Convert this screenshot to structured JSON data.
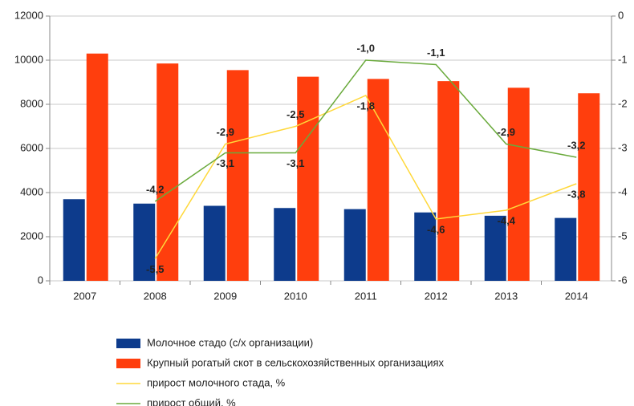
{
  "chart_data": {
    "type": "bar_line",
    "categories": [
      "2007",
      "2008",
      "2009",
      "2010",
      "2011",
      "2012",
      "2013",
      "2014"
    ],
    "series": [
      {
        "name": "Молочное стадо (с/х организации)",
        "color": "#0d3b8c",
        "type": "bar",
        "values": [
          3700,
          3500,
          3400,
          3300,
          3250,
          3100,
          2950,
          2850
        ]
      },
      {
        "name": "Крупный рогатый скот в сельскохозяйственных организациях",
        "color": "#ff3e0d",
        "type": "bar",
        "values": [
          10300,
          9850,
          9550,
          9250,
          9150,
          9050,
          8750,
          8500
        ]
      },
      {
        "name": "прирост молочного стада, %",
        "color": "#ffd83a",
        "type": "line",
        "axis": "y2",
        "values": [
          null,
          -5.5,
          -2.9,
          -2.5,
          -1.8,
          -4.6,
          -4.4,
          -3.8
        ],
        "value_labels": [
          null,
          "-5,5",
          "-2,9",
          "-2,5",
          "-1,8",
          "-4,6",
          "-4,4",
          "-3,8"
        ]
      },
      {
        "name": "прирост общий, %",
        "color": "#6aaa3c",
        "type": "line",
        "axis": "y2",
        "values": [
          null,
          -4.2,
          -3.1,
          -3.1,
          -1.0,
          -1.1,
          -2.9,
          -3.2
        ],
        "value_labels": [
          null,
          "-4,2",
          "-3,1",
          "-3,1",
          "-1,0",
          "-1,1",
          "-2,9",
          "-3,2"
        ]
      }
    ],
    "ylim": [
      0,
      12000
    ],
    "yticks": [
      0,
      2000,
      4000,
      6000,
      8000,
      10000,
      12000
    ],
    "y2lim": [
      -6,
      0
    ],
    "y2ticks": [
      -6,
      -5,
      -4,
      -3,
      -2,
      -1,
      0
    ],
    "grid": true,
    "legend": "bottom"
  }
}
